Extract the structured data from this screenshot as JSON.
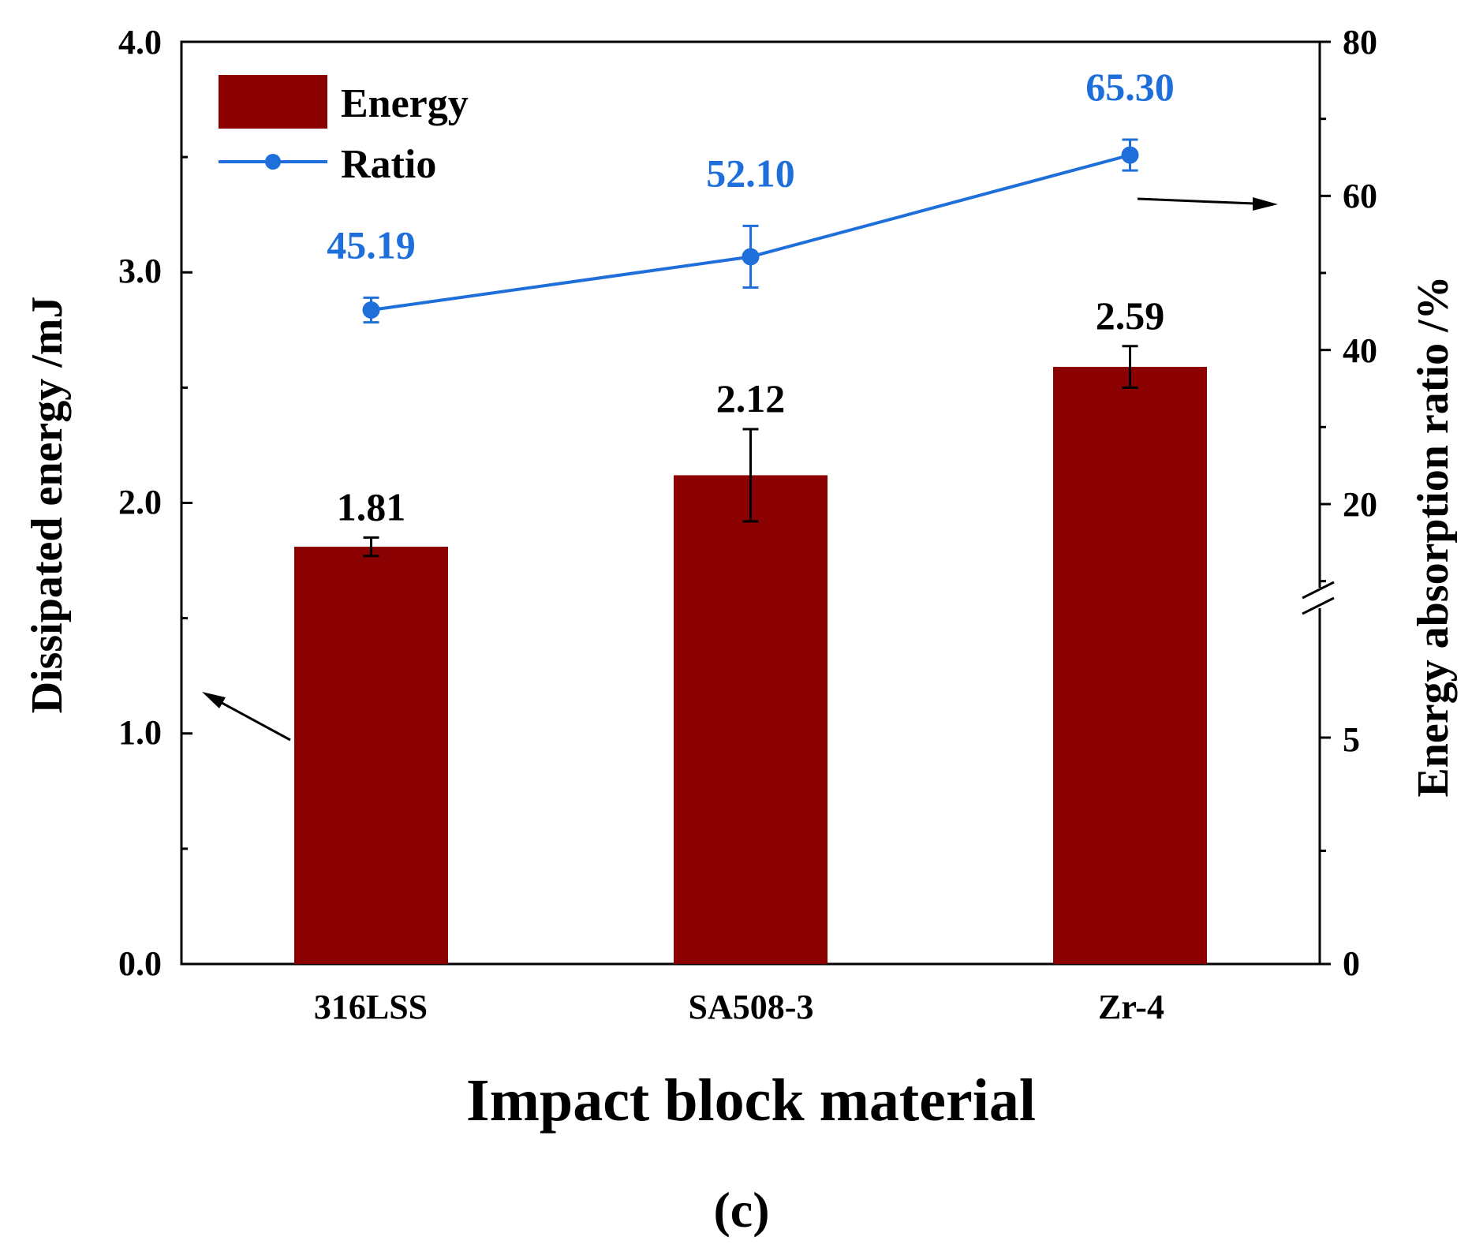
{
  "chart_data": {
    "type": "bar",
    "categories": [
      "316LSS",
      "SA508-3",
      "Zr-4"
    ],
    "series": [
      {
        "name": "Energy",
        "type": "bar",
        "axis": "left",
        "values": [
          1.81,
          2.12,
          2.59
        ],
        "errors": [
          0.04,
          0.2,
          0.09
        ],
        "labels": [
          "1.81",
          "2.12",
          "2.59"
        ]
      },
      {
        "name": "Ratio",
        "type": "line",
        "axis": "right",
        "values": [
          45.19,
          52.1,
          65.3
        ],
        "errors": [
          1.6,
          4.0,
          2.0
        ],
        "labels": [
          "45.19",
          "52.10",
          "65.30"
        ]
      }
    ],
    "xlabel": "Impact block material",
    "ylabel": "Dissipated energy /mJ",
    "ylabel_right": "Energy absorption ratio /%",
    "ylim": [
      0,
      4.0
    ],
    "yticks": [
      "0.0",
      "1.0",
      "2.0",
      "3.0",
      "4.0"
    ],
    "yticks_right": [
      "0",
      "5",
      "20",
      "40",
      "60",
      "80"
    ],
    "right_axis_break": "between 5 and 20",
    "legend_position": "top-left",
    "grid": false,
    "panel_label": "(c)"
  },
  "colors": {
    "bar": "#8B0000",
    "line": "#1E6FD9",
    "axis": "#000000"
  }
}
